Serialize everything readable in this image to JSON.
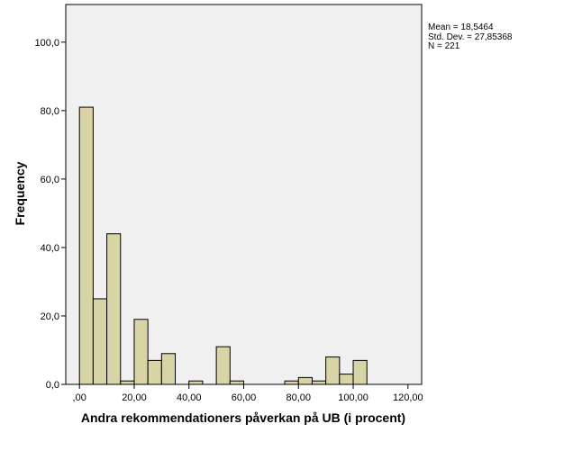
{
  "chart_data": {
    "type": "bar",
    "xlabel": "Andra rekommendationers påverkan på UB (i procent)",
    "ylabel": "Frequency",
    "xlim": [
      -5,
      125
    ],
    "ylim": [
      0,
      111
    ],
    "x_ticks": [
      ",00",
      "20,00",
      "40,00",
      "60,00",
      "80,00",
      "100,00",
      "120,00"
    ],
    "x_tick_values": [
      0,
      20,
      40,
      60,
      80,
      100,
      120
    ],
    "y_ticks": [
      "0,0",
      "20,0",
      "40,0",
      "60,0",
      "80,0",
      "100,0"
    ],
    "y_tick_values": [
      0,
      20,
      40,
      60,
      80,
      100
    ],
    "bin_width": 5,
    "bins": [
      {
        "start": 0,
        "value": 81
      },
      {
        "start": 5,
        "value": 25
      },
      {
        "start": 10,
        "value": 44
      },
      {
        "start": 15,
        "value": 1
      },
      {
        "start": 20,
        "value": 19
      },
      {
        "start": 25,
        "value": 7
      },
      {
        "start": 30,
        "value": 9
      },
      {
        "start": 40,
        "value": 1
      },
      {
        "start": 50,
        "value": 11
      },
      {
        "start": 55,
        "value": 1
      },
      {
        "start": 75,
        "value": 1
      },
      {
        "start": 80,
        "value": 2
      },
      {
        "start": 85,
        "value": 1
      },
      {
        "start": 90,
        "value": 8
      },
      {
        "start": 95,
        "value": 3
      },
      {
        "start": 100,
        "value": 7
      }
    ],
    "colors": {
      "bar_fill": "#d9d4a6",
      "bar_stroke": "#000000",
      "plot_bg": "#f0f0f0"
    },
    "grid": false,
    "stats": {
      "mean": "Mean = 18,5464",
      "std": "Std. Dev. = 27,85368",
      "n": "N = 221"
    }
  }
}
